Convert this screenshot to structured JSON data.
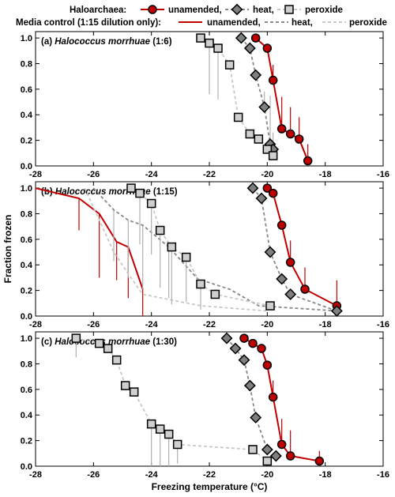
{
  "legend": {
    "row1_title": "Haloarchaea:",
    "row2_title": "Media control (1:15 dilution only):",
    "row1_items": [
      "unamended,",
      "heat,",
      "peroxide"
    ],
    "row2_items": [
      "unamended,",
      "heat,",
      "peroxide"
    ]
  },
  "colors": {
    "unamended": "#c00000",
    "heat": "#888888",
    "peroxide": "#c8c8c8",
    "marker_unamended": "#c00000",
    "marker_heat": "#7f7f7f",
    "marker_peroxide": "#cfcfcf",
    "errorbar_unamended": "#c00000",
    "errorbar_other": "#b0b0b0"
  },
  "chart_data": [
    {
      "type": "line",
      "panel_prefix": "(a) ",
      "title": "Halococcus morrhuae",
      "title_suffix": " (1:6)",
      "xlabel": "",
      "ylabel": "",
      "xlim": [
        -28,
        -16
      ],
      "ylim": [
        0,
        1.05
      ],
      "xticks": [
        "-28",
        "-26",
        "-24",
        "-22",
        "-20",
        "-18",
        "-16"
      ],
      "yticks": [
        "0.0",
        "0.2",
        "0.4",
        "0.6",
        "0.8",
        "1.0"
      ],
      "series": [
        {
          "name": "unamended",
          "kind": "haloarchaea",
          "x": [
            -20.4,
            -20.0,
            -19.8,
            -19.5,
            -19.2,
            -18.9,
            -18.6
          ],
          "y": [
            1.0,
            0.92,
            0.67,
            0.29,
            0.25,
            0.21,
            0.04
          ],
          "err_up": [
            0.0,
            0.0,
            0.12,
            0.25,
            0.21,
            0.17,
            0.13
          ],
          "err_down": [
            0.0,
            0.0,
            0.0,
            0.0,
            0.0,
            0.0,
            0.0
          ]
        },
        {
          "name": "heat",
          "kind": "haloarchaea",
          "x": [
            -20.9,
            -20.6,
            -20.4,
            -20.1,
            -19.9,
            -19.8
          ],
          "y": [
            1.0,
            0.92,
            0.71,
            0.46,
            0.17,
            0.13
          ],
          "err_up": [
            0.0,
            0.0,
            0.0,
            0.12,
            0.38,
            0.13
          ],
          "err_down": [
            0.0,
            0.0,
            0.0,
            0.0,
            0.0,
            0.0
          ]
        },
        {
          "name": "peroxide",
          "kind": "haloarchaea",
          "x": [
            -22.3,
            -22.0,
            -21.7,
            -21.3,
            -21.0,
            -20.6,
            -20.3,
            -20.0,
            -19.8
          ],
          "y": [
            1.0,
            0.96,
            0.92,
            0.79,
            0.38,
            0.25,
            0.21,
            0.13,
            0.08
          ],
          "err_up": [
            0.0,
            0.0,
            0.0,
            0.0,
            0.0,
            0.0,
            0.0,
            0.0,
            0.0
          ],
          "err_down": [
            0.0,
            0.4,
            0.4,
            0.0,
            0.0,
            0.0,
            0.0,
            0.0,
            0.0
          ]
        }
      ]
    },
    {
      "type": "line",
      "panel_prefix": "(b) ",
      "title": "Halococcus morrhuae",
      "title_suffix": " (1:15)",
      "xlabel": "",
      "ylabel": "Fraction frozen",
      "xlim": [
        -28,
        -16
      ],
      "ylim": [
        0,
        1.05
      ],
      "xticks": [
        "-28",
        "-26",
        "-24",
        "-22",
        "-20",
        "-18",
        "-16"
      ],
      "yticks": [
        "0.0",
        "0.2",
        "0.4",
        "0.6",
        "0.8",
        "1.0"
      ],
      "series": [
        {
          "name": "unamended",
          "kind": "haloarchaea",
          "x": [
            -20.0,
            -19.8,
            -19.5,
            -19.2,
            -18.7,
            -17.6
          ],
          "y": [
            1.0,
            0.96,
            0.71,
            0.42,
            0.21,
            0.08
          ],
          "err_up": [
            0.0,
            0.0,
            0.0,
            0.17,
            0.17,
            0.2
          ],
          "err_down": [
            0.0,
            0.0,
            0.0,
            0.0,
            0.0,
            0.0
          ]
        },
        {
          "name": "heat",
          "kind": "haloarchaea",
          "x": [
            -20.5,
            -20.2,
            -19.9,
            -19.5,
            -19.2,
            -17.6
          ],
          "y": [
            1.0,
            0.92,
            0.5,
            0.29,
            0.17,
            0.04
          ],
          "err_up": [
            0.0,
            0.0,
            0.0,
            0.0,
            0.0,
            0.0
          ],
          "err_down": [
            0.0,
            0.0,
            0.0,
            0.0,
            0.0,
            0.0
          ]
        },
        {
          "name": "peroxide",
          "kind": "haloarchaea",
          "x": [
            -24.7,
            -24.4,
            -24.0,
            -23.7,
            -23.3,
            -22.8,
            -22.3,
            -21.8,
            -19.9
          ],
          "y": [
            1.0,
            0.96,
            0.88,
            0.67,
            0.54,
            0.46,
            0.25,
            0.17,
            0.08
          ],
          "err_up": [
            0.0,
            0.0,
            0.0,
            0.0,
            0.0,
            0.0,
            0.0,
            0.0,
            0.0
          ],
          "err_down": [
            0.0,
            0.4,
            0.4,
            0.45,
            0.45,
            0.35,
            0.2,
            0.0,
            0.0
          ]
        },
        {
          "name": "unamended",
          "kind": "control",
          "x": [
            -28.0,
            -26.5,
            -25.8,
            -25.2,
            -24.8,
            -24.3
          ],
          "y": [
            1.0,
            0.92,
            0.8,
            0.58,
            0.54,
            0.21
          ],
          "err_up": [
            0.0,
            0.0,
            0.0,
            0.0,
            0.0,
            0.0
          ],
          "err_down": [
            0.0,
            0.25,
            0.5,
            0.3,
            0.4,
            0.21
          ]
        },
        {
          "name": "heat",
          "kind": "control",
          "x": [
            -26.0,
            -25.3,
            -24.8,
            -24.3,
            -23.4,
            -22.4,
            -21.3,
            -20.3,
            -17.6
          ],
          "y": [
            1.0,
            0.83,
            0.75,
            0.71,
            0.54,
            0.29,
            0.21,
            0.08,
            0.04
          ],
          "err_up": [
            0.0,
            0.0,
            0.0,
            0.0,
            0.0,
            0.0,
            0.0,
            0.0,
            0.0
          ],
          "err_down": [
            0.0,
            0.4,
            0.45,
            0.5,
            0.4,
            0.0,
            0.0,
            0.0,
            0.0
          ]
        },
        {
          "name": "peroxide",
          "kind": "control",
          "x": [
            -26.3,
            -25.8,
            -25.3,
            -24.8,
            -24.3,
            -22.3,
            -20.0
          ],
          "y": [
            1.0,
            0.75,
            0.5,
            0.33,
            0.17,
            0.08,
            0.04
          ],
          "err_up": [
            0.0,
            0.0,
            0.0,
            0.0,
            0.0,
            0.0,
            0.0
          ],
          "err_down": [
            0.0,
            0.0,
            0.0,
            0.0,
            0.0,
            0.0,
            0.0
          ]
        }
      ]
    },
    {
      "type": "line",
      "panel_prefix": "(c) ",
      "title": "Halococcus morrhuae",
      "title_suffix": " (1:30)",
      "xlabel": "Freezing temperature (°C)",
      "ylabel": "",
      "xlim": [
        -28,
        -16
      ],
      "ylim": [
        0,
        1.05
      ],
      "xticks": [
        "-28",
        "-26",
        "-24",
        "-22",
        "-20",
        "-18",
        "-16"
      ],
      "yticks": [
        "0.0",
        "0.2",
        "0.4",
        "0.6",
        "0.8",
        "1.0"
      ],
      "series": [
        {
          "name": "unamended",
          "kind": "haloarchaea",
          "x": [
            -20.8,
            -20.5,
            -20.2,
            -20.0,
            -19.8,
            -19.5,
            -19.2,
            -18.2
          ],
          "y": [
            1.0,
            0.96,
            0.92,
            0.79,
            0.54,
            0.17,
            0.08,
            0.04
          ],
          "err_up": [
            0.0,
            0.0,
            0.0,
            0.0,
            0.13,
            0.2,
            0.2,
            0.08
          ],
          "err_down": [
            0.0,
            0.0,
            0.0,
            0.0,
            0.0,
            0.0,
            0.0,
            0.0
          ]
        },
        {
          "name": "heat",
          "kind": "haloarchaea",
          "x": [
            -21.4,
            -21.1,
            -20.8,
            -20.6,
            -20.4,
            -20.0,
            -19.7
          ],
          "y": [
            1.0,
            0.92,
            0.83,
            0.63,
            0.38,
            0.13,
            0.08
          ],
          "err_up": [
            0.0,
            0.0,
            0.0,
            0.0,
            0.0,
            0.0,
            0.0
          ],
          "err_down": [
            0.0,
            0.0,
            0.0,
            0.0,
            0.0,
            0.0,
            0.0
          ]
        },
        {
          "name": "peroxide",
          "kind": "haloarchaea",
          "x": [
            -26.6,
            -25.8,
            -25.5,
            -25.2,
            -24.9,
            -24.6,
            -24.0,
            -23.7,
            -23.4,
            -23.1,
            -20.5,
            -20.0
          ],
          "y": [
            1.0,
            0.96,
            0.92,
            0.83,
            0.63,
            0.58,
            0.33,
            0.29,
            0.25,
            0.17,
            0.13,
            0.04
          ],
          "err_up": [
            0.0,
            0.0,
            0.0,
            0.0,
            0.0,
            0.0,
            0.0,
            0.0,
            0.0,
            0.0,
            0.0,
            0.0
          ],
          "err_down": [
            0.15,
            0.0,
            0.0,
            0.0,
            0.0,
            0.0,
            0.35,
            0.45,
            0.4,
            0.15,
            0.0,
            0.0
          ]
        }
      ]
    }
  ]
}
